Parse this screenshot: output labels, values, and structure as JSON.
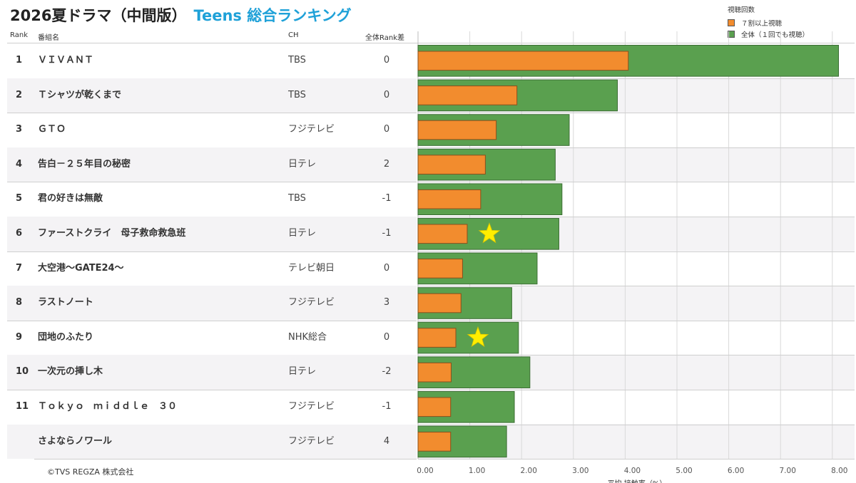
{
  "title": {
    "prefix": "2026夏ドラマ（中間版）",
    "highlight": "Teens 総合ランキング"
  },
  "legend": {
    "title": "視聴回数",
    "items": [
      {
        "label": "７割以上視聴",
        "color": "#f28c2e"
      },
      {
        "label": "全体（１回でも視聴）",
        "color": "#5aa04f"
      }
    ]
  },
  "headers": {
    "rank": "Rank",
    "name": "番組名",
    "ch": "CH",
    "diff": "全体Rank差"
  },
  "copyright": "©TVS REGZA 株式会社",
  "colors": {
    "full": "#5aa04f",
    "seventy": "#f28c2e",
    "star": "#ffee00",
    "title_accent": "#1fa1d8"
  },
  "chart_data": {
    "type": "bar",
    "orientation": "horizontal",
    "xlabel": "平均 接触率（%）",
    "xlim": [
      0,
      8.3
    ],
    "x_ticks": [
      "0.00",
      "1.00",
      "2.00",
      "3.00",
      "4.00",
      "5.00",
      "6.00",
      "7.00",
      "8.00"
    ],
    "categories": [
      "ＶＩＶＡＮＴ",
      "Ｔシャツが乾くまで",
      "ＧＴＯ",
      "告白－２５年目の秘密",
      "君の好きは無敵",
      "ファーストクライ　母子救命救急班",
      "大空港～GATE24～",
      "ラストノート",
      "団地のふたり",
      "一次元の挿し木",
      "Ｔｏｋｙｏ　ｍｉｄｄｌｅ　３０",
      "さよならノワール"
    ],
    "series": [
      {
        "name": "全体（１回でも視聴）",
        "values": [
          8.12,
          3.85,
          2.92,
          2.65,
          2.78,
          2.72,
          2.3,
          1.81,
          1.94,
          2.16,
          1.86,
          1.71
        ]
      },
      {
        "name": "７割以上視聴",
        "values": [
          4.06,
          1.91,
          1.51,
          1.3,
          1.21,
          0.95,
          0.86,
          0.83,
          0.73,
          0.64,
          0.63,
          0.63
        ]
      }
    ],
    "grid": true
  },
  "rows": [
    {
      "rank": "1",
      "name": "ＶＩＶＡＮＴ",
      "ch": "TBS",
      "diff": "0",
      "star": false
    },
    {
      "rank": "2",
      "name": "Ｔシャツが乾くまで",
      "ch": "TBS",
      "diff": "0",
      "star": false
    },
    {
      "rank": "3",
      "name": "ＧＴＯ",
      "ch": "フジテレビ",
      "diff": "0",
      "star": false
    },
    {
      "rank": "4",
      "name": "告白－２５年目の秘密",
      "ch": "日テレ",
      "diff": "2",
      "star": false
    },
    {
      "rank": "5",
      "name": "君の好きは無敵",
      "ch": "TBS",
      "diff": "-1",
      "star": false
    },
    {
      "rank": "6",
      "name": "ファーストクライ　母子救命救急班",
      "ch": "日テレ",
      "diff": "-1",
      "star": true
    },
    {
      "rank": "7",
      "name": "大空港～GATE24～",
      "ch": "テレビ朝日",
      "diff": "0",
      "star": false
    },
    {
      "rank": "8",
      "name": "ラストノート",
      "ch": "フジテレビ",
      "diff": "3",
      "star": false
    },
    {
      "rank": "9",
      "name": "団地のふたり",
      "ch": "NHK総合",
      "diff": "0",
      "star": true
    },
    {
      "rank": "10",
      "name": "一次元の挿し木",
      "ch": "日テレ",
      "diff": "-2",
      "star": false
    },
    {
      "rank": "11",
      "name": "Ｔｏｋｙｏ　ｍｉｄｄｌｅ　３０",
      "ch": "フジテレビ",
      "diff": "-1",
      "star": false
    },
    {
      "rank": "",
      "name": "さよならノワール",
      "ch": "フジテレビ",
      "diff": "4",
      "star": false
    }
  ]
}
